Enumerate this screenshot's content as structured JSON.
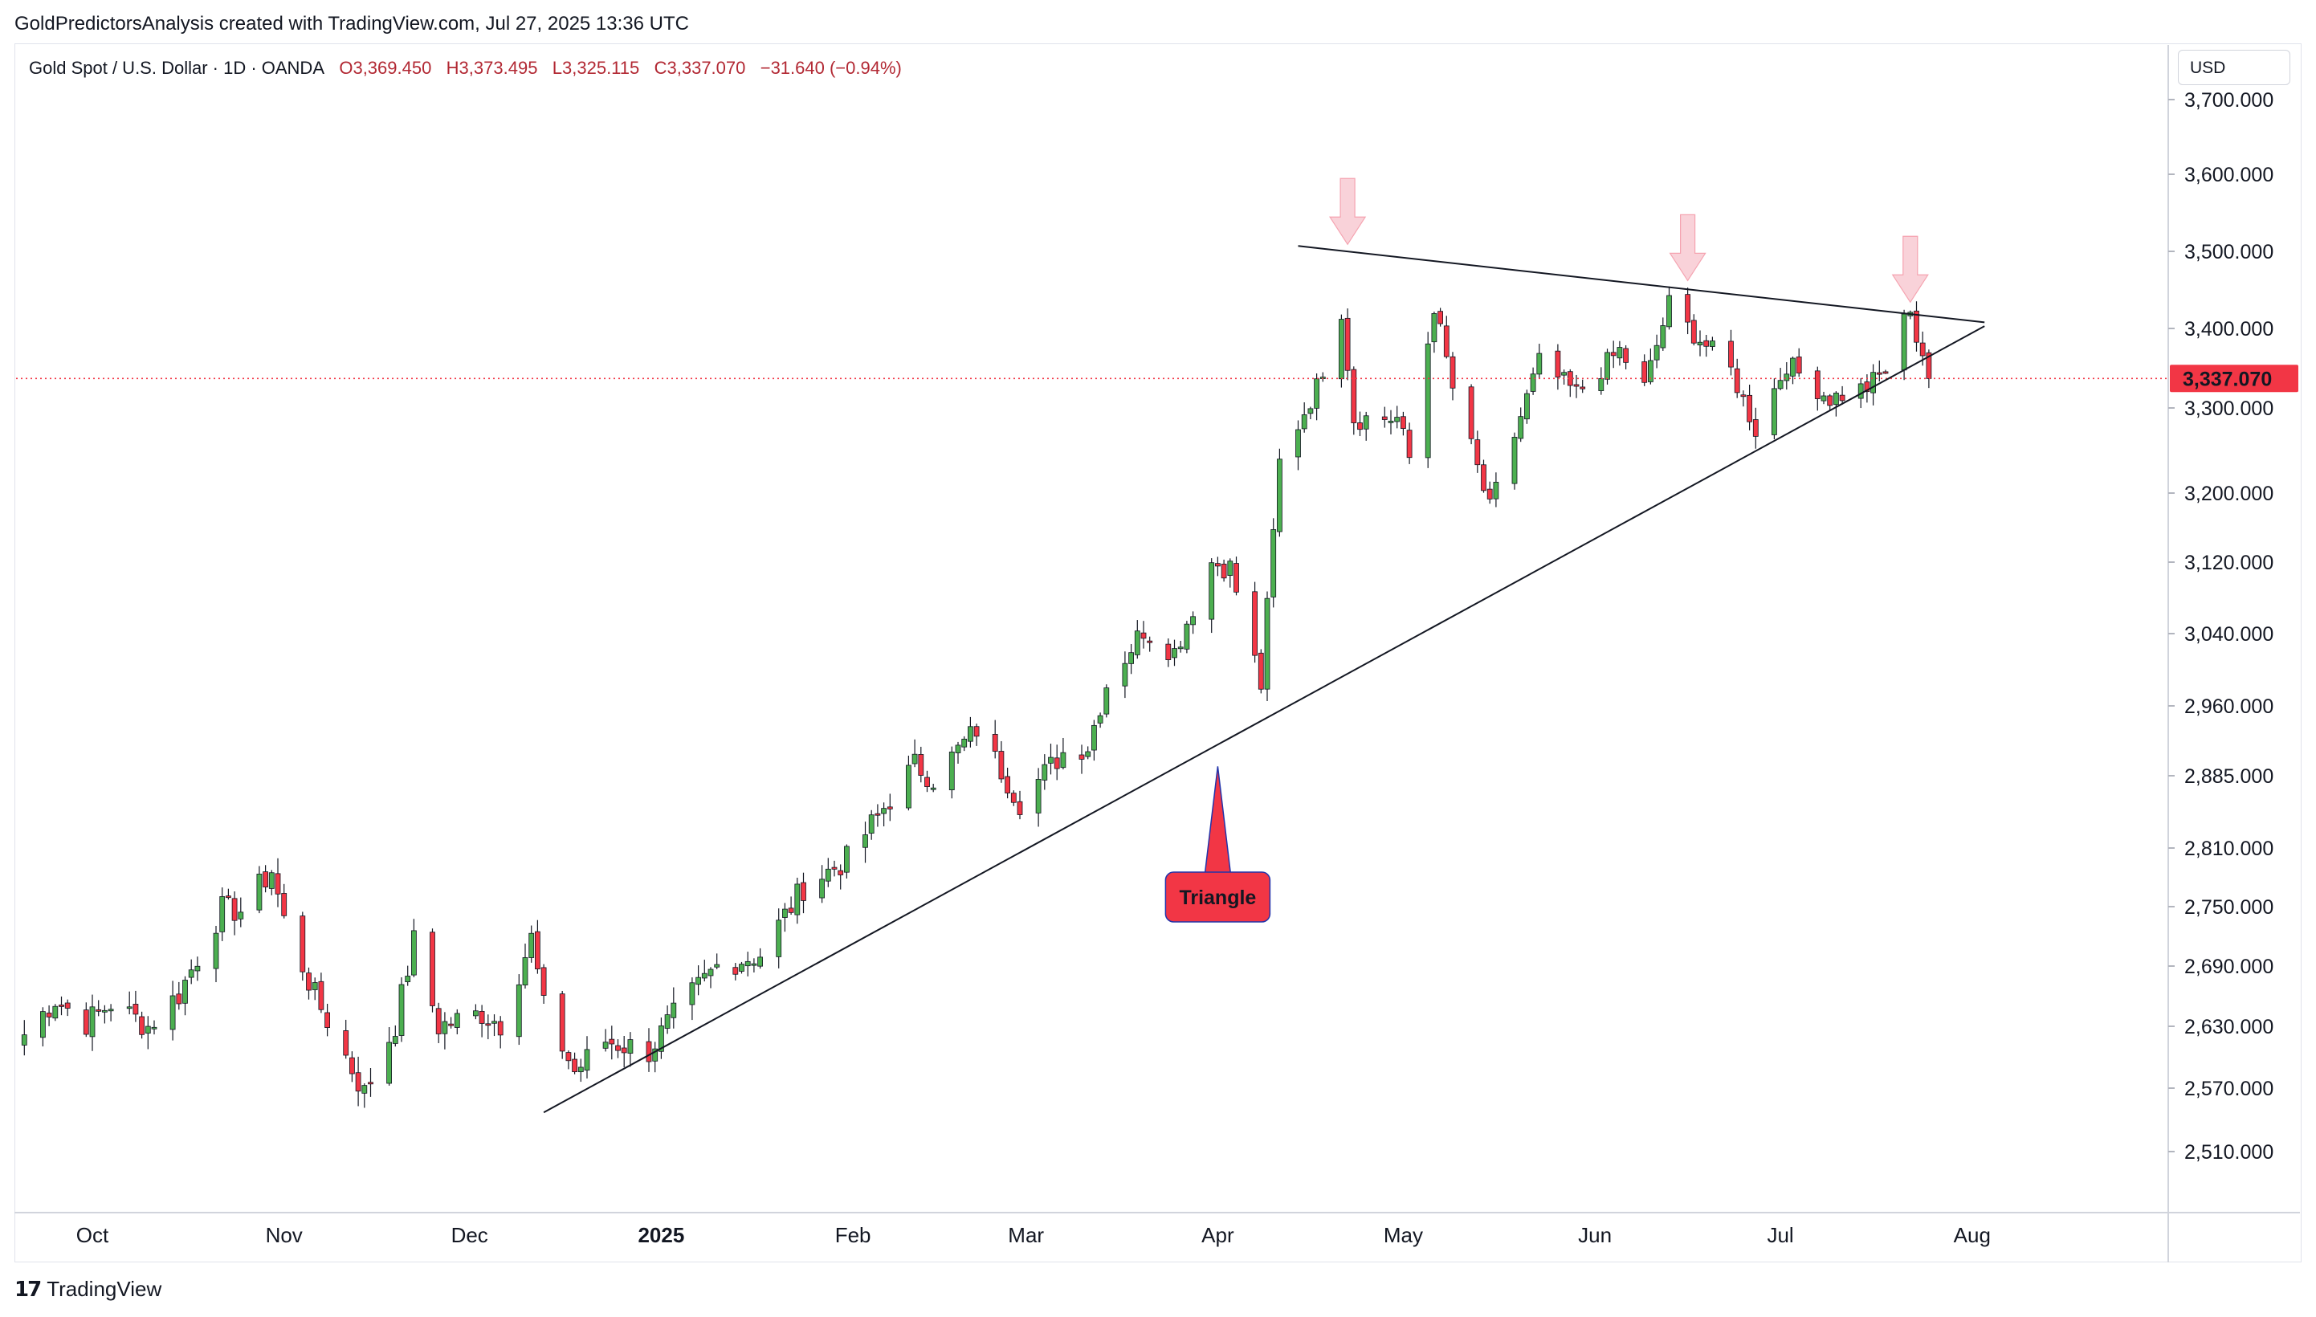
{
  "header": {
    "text": "GoldPredictorsAnalysis created with TradingView.com, Jul 27, 2025 13:36 UTC"
  },
  "symbol": {
    "name": "Gold Spot / U.S. Dollar · 1D · OANDA",
    "open": "O3,369.450",
    "high": "H3,373.495",
    "low": "L3,325.115",
    "close": "C3,337.070",
    "change": "−31.640 (−0.94%)"
  },
  "currency": "USD",
  "footer": {
    "brand": "TradingView",
    "logo_mark": "17"
  },
  "colors": {
    "up": "#089981",
    "up_body": "#4caf50",
    "down": "#f23645",
    "price_tag": "#f23645",
    "line": "#131722"
  },
  "chart_data": {
    "type": "candlestick",
    "title": "Gold Spot / U.S. Dollar · 1D · OANDA",
    "current_price": 3337.07,
    "current_price_label": "3,337.070",
    "y_ticks": [
      {
        "value": 3700,
        "label": "3,700.000"
      },
      {
        "value": 3600,
        "label": "3,600.000"
      },
      {
        "value": 3500,
        "label": "3,500.000"
      },
      {
        "value": 3400,
        "label": "3,400.000"
      },
      {
        "value": 3300,
        "label": "3,300.000"
      },
      {
        "value": 3200,
        "label": "3,200.000"
      },
      {
        "value": 3120,
        "label": "3,120.000"
      },
      {
        "value": 3040,
        "label": "3,040.000"
      },
      {
        "value": 2960,
        "label": "2,960.000"
      },
      {
        "value": 2885,
        "label": "2,885.000"
      },
      {
        "value": 2810,
        "label": "2,810.000"
      },
      {
        "value": 2750,
        "label": "2,750.000"
      },
      {
        "value": 2690,
        "label": "2,690.000"
      },
      {
        "value": 2630,
        "label": "2,630.000"
      },
      {
        "value": 2570,
        "label": "2,570.000"
      },
      {
        "value": 2510,
        "label": "2,510.000"
      }
    ],
    "x_labels": [
      {
        "label": "Oct",
        "date": "2024-10-01",
        "bold": false
      },
      {
        "label": "Nov",
        "date": "2024-11-01",
        "bold": false
      },
      {
        "label": "Dec",
        "date": "2024-12-01",
        "bold": false
      },
      {
        "label": "2025",
        "date": "2025-01-01",
        "bold": true
      },
      {
        "label": "Feb",
        "date": "2025-02-01",
        "bold": false
      },
      {
        "label": "Mar",
        "date": "2025-03-01",
        "bold": false
      },
      {
        "label": "Apr",
        "date": "2025-04-01",
        "bold": false
      },
      {
        "label": "May",
        "date": "2025-05-01",
        "bold": false
      },
      {
        "label": "Jun",
        "date": "2025-06-01",
        "bold": false
      },
      {
        "label": "Jul",
        "date": "2025-07-01",
        "bold": false
      },
      {
        "label": "Aug",
        "date": "2025-08-01",
        "bold": false
      }
    ],
    "closes": [
      {
        "date": "2024-09-20",
        "close": 2622
      },
      {
        "date": "2024-09-25",
        "close": 2657
      },
      {
        "date": "2024-09-30",
        "close": 2634
      },
      {
        "date": "2024-10-04",
        "close": 2653
      },
      {
        "date": "2024-10-10",
        "close": 2630
      },
      {
        "date": "2024-10-15",
        "close": 2662
      },
      {
        "date": "2024-10-22",
        "close": 2748
      },
      {
        "date": "2024-10-25",
        "close": 2746
      },
      {
        "date": "2024-10-30",
        "close": 2787
      },
      {
        "date": "2024-11-01",
        "close": 2736
      },
      {
        "date": "2024-11-06",
        "close": 2660
      },
      {
        "date": "2024-11-14",
        "close": 2565
      },
      {
        "date": "2024-11-19",
        "close": 2632
      },
      {
        "date": "2024-11-22",
        "close": 2715
      },
      {
        "date": "2024-11-26",
        "close": 2630
      },
      {
        "date": "2024-12-03",
        "close": 2643
      },
      {
        "date": "2024-12-06",
        "close": 2633
      },
      {
        "date": "2024-12-11",
        "close": 2718
      },
      {
        "date": "2024-12-13",
        "close": 2648
      },
      {
        "date": "2024-12-18",
        "close": 2586
      },
      {
        "date": "2024-12-23",
        "close": 2616
      },
      {
        "date": "2024-12-30",
        "close": 2606
      },
      {
        "date": "2025-01-03",
        "close": 2640
      },
      {
        "date": "2025-01-10",
        "close": 2690
      },
      {
        "date": "2025-01-17",
        "close": 2702
      },
      {
        "date": "2025-01-24",
        "close": 2770
      },
      {
        "date": "2025-01-31",
        "close": 2798
      },
      {
        "date": "2025-02-07",
        "close": 2861
      },
      {
        "date": "2025-02-11",
        "close": 2897
      },
      {
        "date": "2025-02-14",
        "close": 2882
      },
      {
        "date": "2025-02-21",
        "close": 2935
      },
      {
        "date": "2025-02-28",
        "close": 2858
      },
      {
        "date": "2025-03-07",
        "close": 2910
      },
      {
        "date": "2025-03-11",
        "close": 2917
      },
      {
        "date": "2025-03-14",
        "close": 2984
      },
      {
        "date": "2025-03-20",
        "close": 3045
      },
      {
        "date": "2025-03-25",
        "close": 3020
      },
      {
        "date": "2025-03-31",
        "close": 3120
      },
      {
        "date": "2025-04-03",
        "close": 3114
      },
      {
        "date": "2025-04-08",
        "close": 2983
      },
      {
        "date": "2025-04-11",
        "close": 3236
      },
      {
        "date": "2025-04-17",
        "close": 3326
      },
      {
        "date": "2025-04-21",
        "close": 3424
      },
      {
        "date": "2025-04-23",
        "close": 3288
      },
      {
        "date": "2025-04-30",
        "close": 3288
      },
      {
        "date": "2025-05-02",
        "close": 3241
      },
      {
        "date": "2025-05-06",
        "close": 3430
      },
      {
        "date": "2025-05-09",
        "close": 3325
      },
      {
        "date": "2025-05-15",
        "close": 3180
      },
      {
        "date": "2025-05-20",
        "close": 3290
      },
      {
        "date": "2025-05-23",
        "close": 3357
      },
      {
        "date": "2025-05-29",
        "close": 3318
      },
      {
        "date": "2025-06-05",
        "close": 3372
      },
      {
        "date": "2025-06-09",
        "close": 3325
      },
      {
        "date": "2025-06-13",
        "close": 3432
      },
      {
        "date": "2025-06-16",
        "close": 3402
      },
      {
        "date": "2025-06-23",
        "close": 3347
      },
      {
        "date": "2025-06-27",
        "close": 3275
      },
      {
        "date": "2025-07-02",
        "close": 3356
      },
      {
        "date": "2025-07-09",
        "close": 3312
      },
      {
        "date": "2025-07-15",
        "close": 3326
      },
      {
        "date": "2025-07-18",
        "close": 3348
      },
      {
        "date": "2025-07-22",
        "close": 3430
      },
      {
        "date": "2025-07-23",
        "close": 3387
      },
      {
        "date": "2025-07-24",
        "close": 3368
      },
      {
        "date": "2025-07-25",
        "close": 3337
      }
    ],
    "trendlines": [
      {
        "name": "resistance",
        "from": {
          "date": "2025-04-14",
          "price": 3507
        },
        "to": {
          "date": "2025-08-03",
          "price": 3408
        }
      },
      {
        "name": "support",
        "from": {
          "date": "2024-12-13",
          "price": 2547
        },
        "to": {
          "date": "2025-08-03",
          "price": 3403
        }
      }
    ],
    "arrows": [
      {
        "date": "2025-04-22",
        "price": 3507
      },
      {
        "date": "2025-06-16",
        "price": 3460
      },
      {
        "date": "2025-07-22",
        "price": 3432
      }
    ],
    "annotation": {
      "text": "Triangle",
      "date": "2025-04-01",
      "anchor_price": 2895
    }
  }
}
